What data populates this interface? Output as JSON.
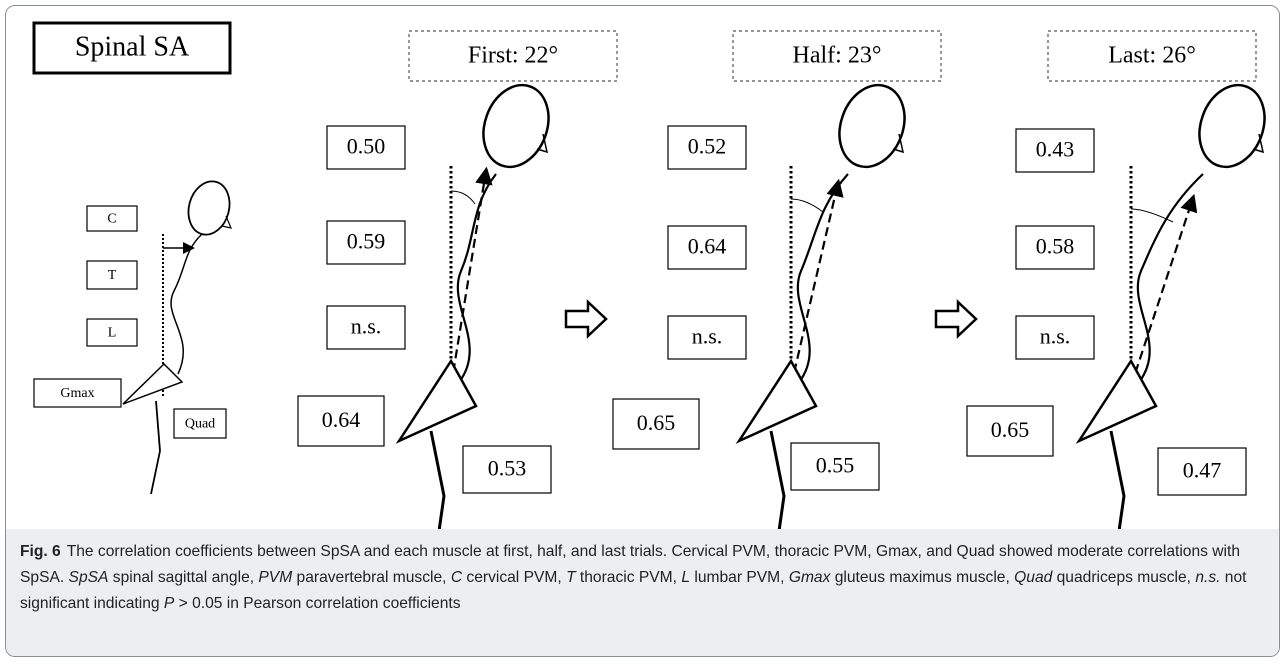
{
  "figure": {
    "title": "Spinal SA",
    "legend_labels": [
      "C",
      "T",
      "L",
      "Gmax",
      "Quad"
    ],
    "panels": [
      {
        "header": "First: 22°",
        "values": [
          "0.50",
          "0.59",
          "n.s.",
          "0.64",
          "0.53"
        ]
      },
      {
        "header": "Half: 23°",
        "values": [
          "0.52",
          "0.64",
          "n.s.",
          "0.65",
          "0.55"
        ]
      },
      {
        "header": "Last: 26°",
        "values": [
          "0.43",
          "0.58",
          "n.s.",
          "0.65",
          "0.47"
        ]
      }
    ],
    "caption": {
      "label": "Fig. 6",
      "parts": [
        {
          "text": "The correlation coefficients between SpSA and each muscle at first, half, and last trials. Cervical PVM, thoracic PVM, Gmax, and Quad showed moderate correlations with SpSA. ",
          "italic": false
        },
        {
          "text": "SpSA",
          "italic": true
        },
        {
          "text": " spinal sagittal angle, ",
          "italic": false
        },
        {
          "text": "PVM",
          "italic": true
        },
        {
          "text": " paravertebral muscle, ",
          "italic": false
        },
        {
          "text": "C",
          "italic": true
        },
        {
          "text": " cervical PVM, ",
          "italic": false
        },
        {
          "text": "T",
          "italic": true
        },
        {
          "text": " thoracic PVM, ",
          "italic": false
        },
        {
          "text": "L",
          "italic": true
        },
        {
          "text": " lumbar PVM, ",
          "italic": false
        },
        {
          "text": "Gmax",
          "italic": true
        },
        {
          "text": " gluteus maximus muscle, ",
          "italic": false
        },
        {
          "text": "Quad",
          "italic": true
        },
        {
          "text": " quadriceps muscle, ",
          "italic": false
        },
        {
          "text": "n.s.",
          "italic": true
        },
        {
          "text": " not significant indicating ",
          "italic": false
        },
        {
          "text": "P",
          "italic": true
        },
        {
          "text": " > 0.05 in Pearson correlation coefficients",
          "italic": false
        }
      ]
    }
  }
}
